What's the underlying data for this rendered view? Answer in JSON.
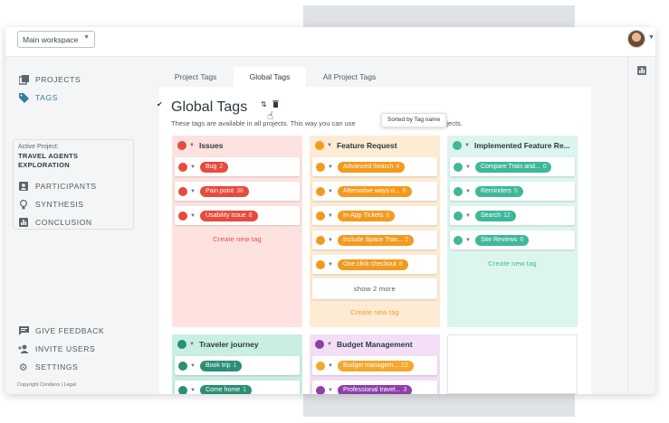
{
  "topbar": {
    "workspace_label": "Main workspace"
  },
  "sidebar": {
    "items": [
      {
        "label": "PROJECTS",
        "icon": "projects-icon"
      },
      {
        "label": "TAGS",
        "icon": "tag-icon"
      }
    ],
    "project": {
      "caption": "Active Project:",
      "name": "TRAVEL AGENTS EXPLORATION",
      "items": [
        {
          "label": "PARTICIPANTS",
          "icon": "participants-icon"
        },
        {
          "label": "SYNTHESIS",
          "icon": "lightbulb-icon"
        },
        {
          "label": "CONCLUSION",
          "icon": "chart-icon"
        }
      ]
    },
    "bottom": [
      {
        "label": "GIVE FEEDBACK",
        "icon": "feedback-icon"
      },
      {
        "label": "INVITE USERS",
        "icon": "add-user-icon"
      },
      {
        "label": "SETTINGS",
        "icon": "gear-icon"
      }
    ],
    "copyright": "Copyright Condens | Legal"
  },
  "tabs": [
    "Project Tags",
    "Global Tags",
    "All Project Tags"
  ],
  "main": {
    "title": "Global Tags",
    "description_start": "These tags are available in all projects. This way you can use",
    "description_end": "cross all projects.",
    "tooltip": "Sorted by Tag name"
  },
  "colors": {
    "red": "#e84a3b",
    "orange": "#f39a1e",
    "teal": "#3fb89a",
    "purple": "#8e3fa8"
  },
  "groups": [
    {
      "name": "Issues",
      "tags": [
        {
          "name": "Bug",
          "count": "2"
        },
        {
          "name": "Pain point",
          "count": "38"
        },
        {
          "name": "Usability issue",
          "count": "8"
        }
      ],
      "create_label": "Create new tag"
    },
    {
      "name": "Feature Request",
      "tags": [
        {
          "name": "Advanced Search",
          "count": "4"
        },
        {
          "name": "Alternative ways o...",
          "count": "6"
        },
        {
          "name": "In-App Tickets",
          "count": "6"
        },
        {
          "name": "Include Space Trav...",
          "count": "2"
        },
        {
          "name": "One click checkout",
          "count": "8"
        }
      ],
      "show_more": "show 2 more",
      "create_label": "Create new tag"
    },
    {
      "name": "Implemented Feature Re...",
      "tags": [
        {
          "name": "Compare Train and...",
          "count": "0"
        },
        {
          "name": "Reminders",
          "count": "5"
        },
        {
          "name": "Search",
          "count": "12"
        },
        {
          "name": "Site Reviews",
          "count": "6"
        }
      ],
      "create_label": "Create new tag"
    },
    {
      "name": "Traveler journey",
      "tags": [
        {
          "name": "Book trip",
          "count": "1"
        },
        {
          "name": "Come home",
          "count": "1"
        }
      ]
    },
    {
      "name": "Budget Management",
      "tags": [
        {
          "name": "Budget managem...",
          "count": "22"
        },
        {
          "name": "Professional travel...",
          "count": "3"
        }
      ]
    }
  ]
}
